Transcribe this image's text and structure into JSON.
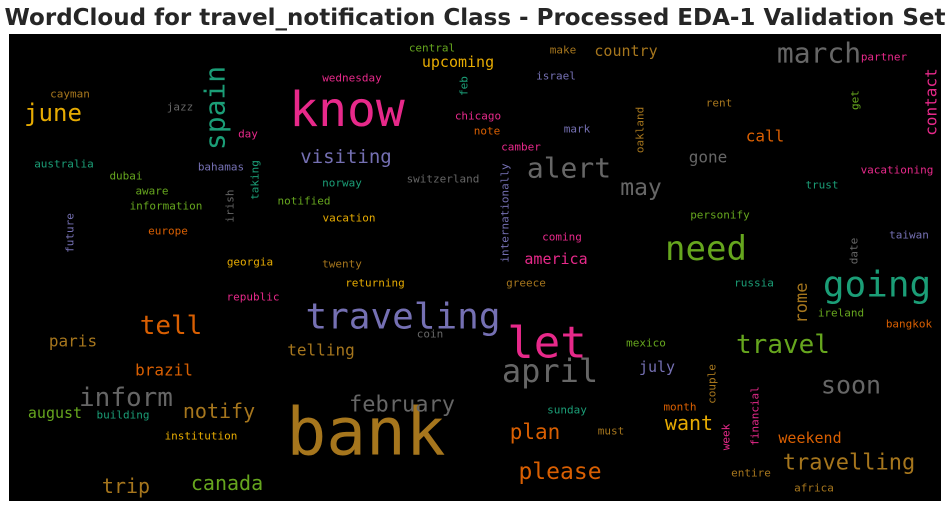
{
  "chart_data": {
    "type": "wordcloud",
    "title": "WordCloud for travel_notification Class - Processed EDA-1 Validation Set",
    "background": "#000000",
    "words": [
      {
        "text": "bank",
        "size": 66,
        "color": "#a6761d",
        "rotate": false
      },
      {
        "text": "know",
        "size": 48,
        "color": "#e7298a",
        "rotate": false
      },
      {
        "text": "let",
        "size": 44,
        "color": "#e7298a",
        "rotate": false
      },
      {
        "text": "traveling",
        "size": 36,
        "color": "#7570b3",
        "rotate": false
      },
      {
        "text": "going",
        "size": 36,
        "color": "#1b9e77",
        "rotate": false
      },
      {
        "text": "need",
        "size": 34,
        "color": "#66a61e",
        "rotate": false
      },
      {
        "text": "april",
        "size": 32,
        "color": "#666666",
        "rotate": false
      },
      {
        "text": "alert",
        "size": 28,
        "color": "#666666",
        "rotate": false
      },
      {
        "text": "march",
        "size": 28,
        "color": "#666666",
        "rotate": false
      },
      {
        "text": "spain",
        "size": 28,
        "color": "#1b9e77",
        "rotate": true
      },
      {
        "text": "inform",
        "size": 26,
        "color": "#666666",
        "rotate": false
      },
      {
        "text": "tell",
        "size": 26,
        "color": "#d95f02",
        "rotate": false
      },
      {
        "text": "travel",
        "size": 26,
        "color": "#66a61e",
        "rotate": false
      },
      {
        "text": "soon",
        "size": 25,
        "color": "#666666",
        "rotate": false
      },
      {
        "text": "june",
        "size": 24,
        "color": "#e6ab02",
        "rotate": false
      },
      {
        "text": "please",
        "size": 23,
        "color": "#d95f02",
        "rotate": false
      },
      {
        "text": "may",
        "size": 23,
        "color": "#666666",
        "rotate": false
      },
      {
        "text": "february",
        "size": 22,
        "color": "#666666",
        "rotate": false
      },
      {
        "text": "travelling",
        "size": 22,
        "color": "#a6761d",
        "rotate": false
      },
      {
        "text": "notify",
        "size": 20,
        "color": "#a6761d",
        "rotate": false
      },
      {
        "text": "plan",
        "size": 21,
        "color": "#d95f02",
        "rotate": false
      },
      {
        "text": "canada",
        "size": 20,
        "color": "#66a61e",
        "rotate": false
      },
      {
        "text": "trip",
        "size": 20,
        "color": "#a6761d",
        "rotate": false
      },
      {
        "text": "want",
        "size": 20,
        "color": "#e6ab02",
        "rotate": false
      },
      {
        "text": "visiting",
        "size": 19,
        "color": "#7570b3",
        "rotate": false
      },
      {
        "text": "rome",
        "size": 17,
        "color": "#a6761d",
        "rotate": true
      },
      {
        "text": "contact",
        "size": 16,
        "color": "#e7298a",
        "rotate": true
      },
      {
        "text": "country",
        "size": 15,
        "color": "#a6761d",
        "rotate": false
      },
      {
        "text": "upcoming",
        "size": 15,
        "color": "#e6ab02",
        "rotate": false
      },
      {
        "text": "call",
        "size": 16,
        "color": "#d95f02",
        "rotate": false
      },
      {
        "text": "gone",
        "size": 16,
        "color": "#666666",
        "rotate": false
      },
      {
        "text": "america",
        "size": 15,
        "color": "#e7298a",
        "rotate": false
      },
      {
        "text": "paris",
        "size": 16,
        "color": "#a6761d",
        "rotate": false
      },
      {
        "text": "telling",
        "size": 16,
        "color": "#a6761d",
        "rotate": false
      },
      {
        "text": "brazil",
        "size": 16,
        "color": "#d95f02",
        "rotate": false
      },
      {
        "text": "august",
        "size": 15,
        "color": "#66a61e",
        "rotate": false
      },
      {
        "text": "july",
        "size": 15,
        "color": "#7570b3",
        "rotate": false
      },
      {
        "text": "weekend",
        "size": 15,
        "color": "#d95f02",
        "rotate": false
      },
      {
        "text": "wednesday",
        "size": 11,
        "color": "#e7298a",
        "rotate": false
      },
      {
        "text": "central",
        "size": 11,
        "color": "#66a61e",
        "rotate": false
      },
      {
        "text": "make",
        "size": 11,
        "color": "#a6761d",
        "rotate": false
      },
      {
        "text": "israel",
        "size": 11,
        "color": "#7570b3",
        "rotate": false
      },
      {
        "text": "partner",
        "size": 11,
        "color": "#e7298a",
        "rotate": false
      },
      {
        "text": "cayman",
        "size": 11,
        "color": "#a6761d",
        "rotate": false
      },
      {
        "text": "jazz",
        "size": 11,
        "color": "#666666",
        "rotate": false
      },
      {
        "text": "feb",
        "size": 11,
        "color": "#1b9e77",
        "rotate": true
      },
      {
        "text": "chicago",
        "size": 11,
        "color": "#e7298a",
        "rotate": false
      },
      {
        "text": "note",
        "size": 11,
        "color": "#d95f02",
        "rotate": false
      },
      {
        "text": "mark",
        "size": 11,
        "color": "#7570b3",
        "rotate": false
      },
      {
        "text": "oakland",
        "size": 11,
        "color": "#a6761d",
        "rotate": true
      },
      {
        "text": "rent",
        "size": 11,
        "color": "#a6761d",
        "rotate": false
      },
      {
        "text": "get",
        "size": 11,
        "color": "#66a61e",
        "rotate": true
      },
      {
        "text": "day",
        "size": 11,
        "color": "#e7298a",
        "rotate": false
      },
      {
        "text": "camber",
        "size": 11,
        "color": "#e7298a",
        "rotate": false
      },
      {
        "text": "australia",
        "size": 11,
        "color": "#1b9e77",
        "rotate": false
      },
      {
        "text": "bahamas",
        "size": 11,
        "color": "#7570b3",
        "rotate": false
      },
      {
        "text": "taking",
        "size": 11,
        "color": "#1b9e77",
        "rotate": true
      },
      {
        "text": "dubai",
        "size": 11,
        "color": "#66a61e",
        "rotate": false
      },
      {
        "text": "aware",
        "size": 11,
        "color": "#66a61e",
        "rotate": false
      },
      {
        "text": "switzerland",
        "size": 11,
        "color": "#666666",
        "rotate": false
      },
      {
        "text": "internationally",
        "size": 11,
        "color": "#7570b3",
        "rotate": true
      },
      {
        "text": "norway",
        "size": 11,
        "color": "#1b9e77",
        "rotate": false
      },
      {
        "text": "vacationing",
        "size": 11,
        "color": "#e7298a",
        "rotate": false
      },
      {
        "text": "trust",
        "size": 11,
        "color": "#1b9e77",
        "rotate": false
      },
      {
        "text": "information",
        "size": 11,
        "color": "#66a61e",
        "rotate": false
      },
      {
        "text": "irish",
        "size": 11,
        "color": "#666666",
        "rotate": true
      },
      {
        "text": "notified",
        "size": 11,
        "color": "#66a61e",
        "rotate": false
      },
      {
        "text": "personify",
        "size": 11,
        "color": "#66a61e",
        "rotate": false
      },
      {
        "text": "future",
        "size": 11,
        "color": "#7570b3",
        "rotate": true
      },
      {
        "text": "europe",
        "size": 11,
        "color": "#d95f02",
        "rotate": false
      },
      {
        "text": "vacation",
        "size": 11,
        "color": "#e6ab02",
        "rotate": false
      },
      {
        "text": "coming",
        "size": 11,
        "color": "#e7298a",
        "rotate": false
      },
      {
        "text": "taiwan",
        "size": 11,
        "color": "#7570b3",
        "rotate": false
      },
      {
        "text": "date",
        "size": 11,
        "color": "#666666",
        "rotate": true
      },
      {
        "text": "georgia",
        "size": 11,
        "color": "#e6ab02",
        "rotate": false
      },
      {
        "text": "twenty",
        "size": 11,
        "color": "#a6761d",
        "rotate": false
      },
      {
        "text": "returning",
        "size": 11,
        "color": "#e6ab02",
        "rotate": false
      },
      {
        "text": "greece",
        "size": 11,
        "color": "#a6761d",
        "rotate": false
      },
      {
        "text": "russia",
        "size": 11,
        "color": "#1b9e77",
        "rotate": false
      },
      {
        "text": "republic",
        "size": 11,
        "color": "#e7298a",
        "rotate": false
      },
      {
        "text": "ireland",
        "size": 11,
        "color": "#66a61e",
        "rotate": false
      },
      {
        "text": "bangkok",
        "size": 11,
        "color": "#d95f02",
        "rotate": false
      },
      {
        "text": "coin",
        "size": 11,
        "color": "#666666",
        "rotate": false
      },
      {
        "text": "mexico",
        "size": 11,
        "color": "#66a61e",
        "rotate": false
      },
      {
        "text": "couple",
        "size": 11,
        "color": "#a6761d",
        "rotate": true
      },
      {
        "text": "financial",
        "size": 11,
        "color": "#e7298a",
        "rotate": true
      },
      {
        "text": "building",
        "size": 11,
        "color": "#1b9e77",
        "rotate": false
      },
      {
        "text": "sunday",
        "size": 11,
        "color": "#1b9e77",
        "rotate": false
      },
      {
        "text": "month",
        "size": 11,
        "color": "#d95f02",
        "rotate": false
      },
      {
        "text": "institution",
        "size": 11,
        "color": "#e6ab02",
        "rotate": false
      },
      {
        "text": "must",
        "size": 11,
        "color": "#a6761d",
        "rotate": false
      },
      {
        "text": "week",
        "size": 11,
        "color": "#e7298a",
        "rotate": true
      },
      {
        "text": "entire",
        "size": 11,
        "color": "#a6761d",
        "rotate": false
      },
      {
        "text": "africa",
        "size": 11,
        "color": "#a6761d",
        "rotate": false
      }
    ]
  }
}
